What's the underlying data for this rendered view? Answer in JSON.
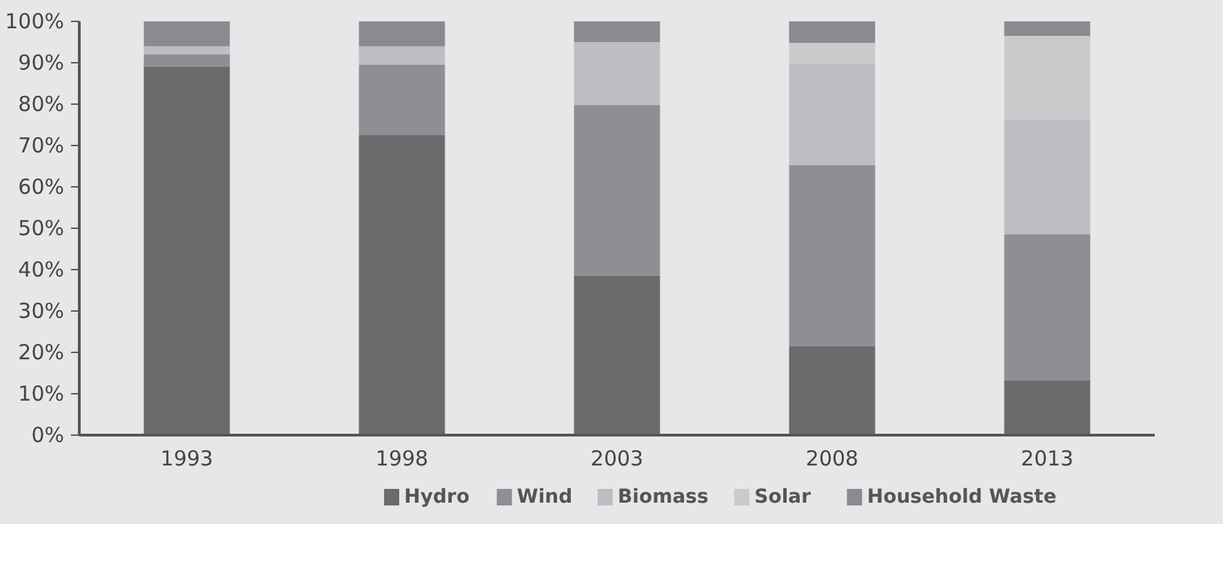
{
  "chart_data": {
    "type": "bar",
    "stacked": true,
    "categories": [
      "1993",
      "1998",
      "2003",
      "2008",
      "2013"
    ],
    "series": [
      {
        "name": "Hydro",
        "color": "#6b6b6e",
        "values": [
          89,
          72.5,
          38.6,
          21.6,
          13.3
        ]
      },
      {
        "name": "Wind",
        "color": "#8e8f92",
        "values": [
          3,
          17,
          41.2,
          43.7,
          35.3
        ]
      },
      {
        "name": "Biomass",
        "color": "#bdbec1",
        "values": [
          2,
          4.5,
          15.2,
          24.5,
          27.7
        ]
      },
      {
        "name": "Solar",
        "color": "#c9cacc",
        "values": [
          0,
          0,
          0,
          5,
          20.2
        ]
      },
      {
        "name": "Household Waste",
        "color": "#8a8b8e",
        "values": [
          6,
          6,
          5,
          5.2,
          3.5
        ]
      }
    ],
    "ylim": [
      0,
      100
    ],
    "yticks": [
      {
        "value": 0,
        "label": "0%"
      },
      {
        "value": 10,
        "label": "10%"
      },
      {
        "value": 20,
        "label": "20%"
      },
      {
        "value": 30,
        "label": "30%"
      },
      {
        "value": 40,
        "label": "40%"
      },
      {
        "value": 50,
        "label": "50%"
      },
      {
        "value": 60,
        "label": "60%"
      },
      {
        "value": 70,
        "label": "70%"
      },
      {
        "value": 80,
        "label": "80%"
      },
      {
        "value": 90,
        "label": "90%"
      },
      {
        "value": 100,
        "label": "100%"
      }
    ],
    "grid": false,
    "legend": "bottom"
  }
}
